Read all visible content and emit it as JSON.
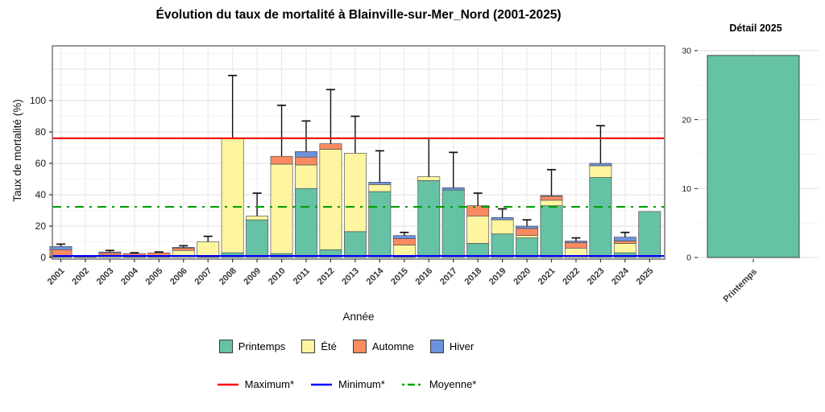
{
  "figure": {
    "background": "#ffffff"
  },
  "main_chart": {
    "type": "bar",
    "stacked": true,
    "title": "Évolution du taux de mortalité à Blainville-sur-Mer_Nord (2001-2025)",
    "xlabel": "Année",
    "ylabel": "Taux de mortalité (%)",
    "ylim": [
      0,
      135
    ],
    "yticks": [
      0,
      20,
      40,
      60,
      80,
      100
    ],
    "grid": true,
    "legend_position": "bottom",
    "categories": [
      "2001",
      "2002",
      "2003",
      "2004",
      "2005",
      "2006",
      "2007",
      "2008",
      "2009",
      "2010",
      "2011",
      "2012",
      "2013",
      "2014",
      "2015",
      "2016",
      "2017",
      "2018",
      "2019",
      "2020",
      "2021",
      "2022",
      "2023",
      "2024",
      "2025"
    ],
    "series": [
      {
        "name": "Printemps",
        "color": "#66C2A5",
        "values": [
          0.5,
          0,
          0,
          0,
          0,
          0,
          0.5,
          3,
          24,
          2.5,
          44,
          5,
          16.5,
          42,
          0.5,
          49,
          43,
          9,
          15,
          12.5,
          33,
          0,
          51,
          3,
          29.3
        ]
      },
      {
        "name": "Été",
        "color": "#FDF5A0",
        "values": [
          0.5,
          0,
          1.5,
          0.5,
          0.5,
          4.5,
          9.5,
          73,
          2.5,
          57,
          15,
          64,
          50,
          4.5,
          7.5,
          2.5,
          0,
          17.5,
          9,
          1.5,
          3.5,
          6,
          7.5,
          6,
          0
        ]
      },
      {
        "name": "Automne",
        "color": "#FA8B61",
        "values": [
          4,
          0.4,
          1.5,
          2,
          2.5,
          1.5,
          0,
          0,
          0,
          5,
          5,
          3.5,
          0,
          0,
          4,
          0,
          0,
          6.5,
          0,
          4.5,
          2.5,
          3.5,
          0,
          1.5,
          0
        ]
      },
      {
        "name": "Hiver",
        "color": "#6C92DC",
        "values": [
          2,
          0,
          0.5,
          0,
          0,
          0.5,
          0,
          0,
          0,
          0,
          3.5,
          0,
          0,
          1.5,
          2,
          0,
          1.5,
          0,
          1.5,
          1.5,
          0.5,
          1,
          1.5,
          2.5,
          0
        ]
      }
    ],
    "error_upper": [
      8.5,
      null,
      4.5,
      3,
      3.5,
      7.5,
      13.5,
      116,
      41,
      97,
      87,
      107,
      90,
      68,
      16,
      76,
      67,
      41,
      31,
      24,
      56,
      12.5,
      84,
      16,
      null
    ],
    "ref_lines": [
      {
        "label": "Maximum*",
        "value": 76,
        "color": "#FF0000",
        "dash": "solid"
      },
      {
        "label": "Minimum*",
        "value": 1,
        "color": "#0000FF",
        "dash": "solid"
      },
      {
        "label": "Moyenne*",
        "value": 32.3,
        "color": "#00A000",
        "dash": "dash-dot"
      }
    ]
  },
  "detail_chart": {
    "type": "bar",
    "title": "Détail 2025",
    "categories": [
      "Printemps"
    ],
    "values": [
      29.3
    ],
    "color": "#66C2A5",
    "ylim": [
      0,
      30
    ],
    "yticks": [
      0,
      10,
      20,
      30
    ],
    "grid": true
  }
}
